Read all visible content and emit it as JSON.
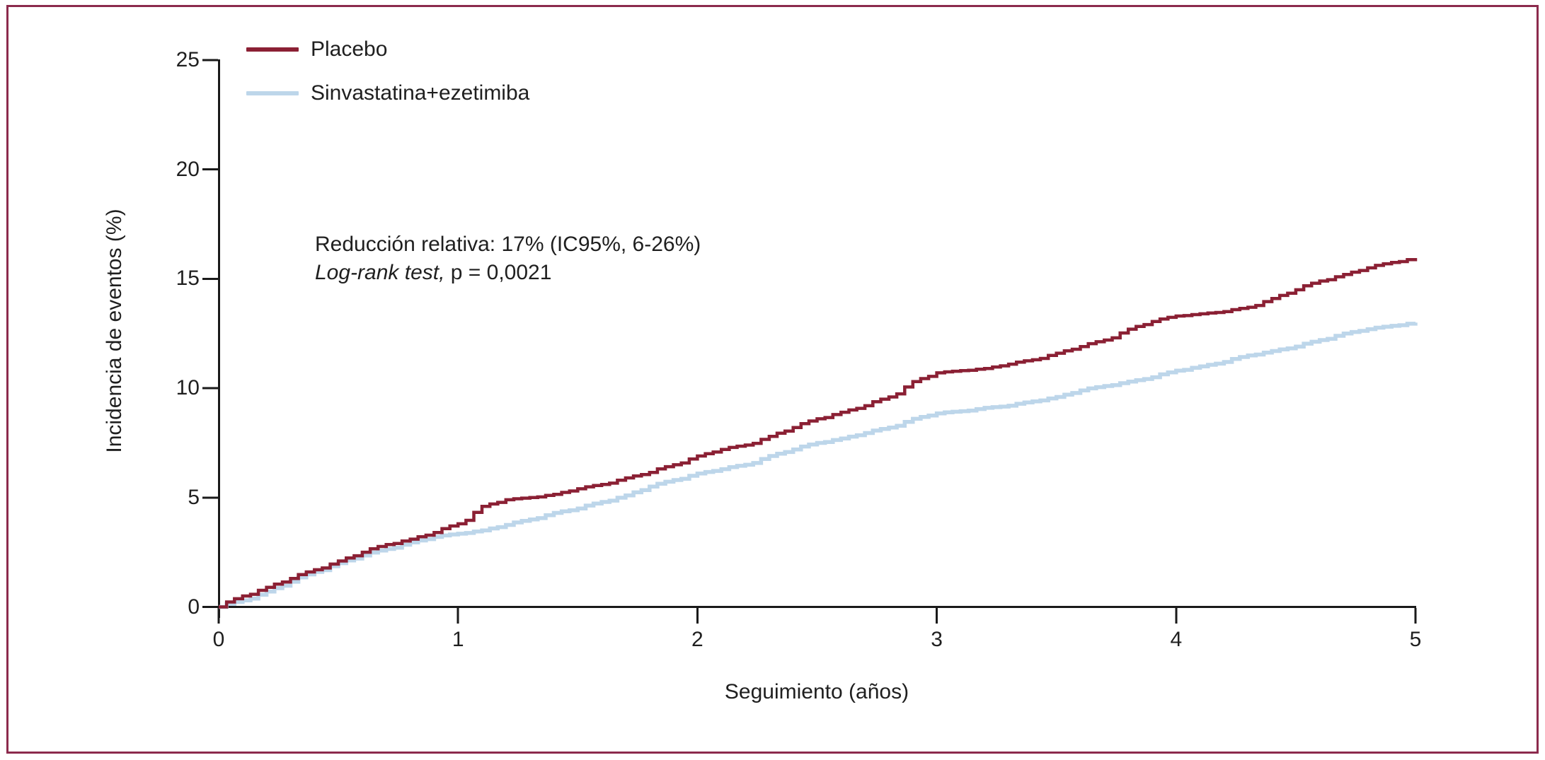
{
  "figure": {
    "background": "#FFFFFF",
    "frame_color": "#8C2B4D",
    "axis_color": "#1A1A1A",
    "text_color": "#1F1F1F"
  },
  "chart_data": {
    "type": "line",
    "subtype": "kaplan-meier-step",
    "title": "",
    "xlabel": "Seguimiento (años)",
    "ylabel": "Incidencia de eventos (%)",
    "xlim": [
      0,
      5
    ],
    "ylim": [
      0,
      25
    ],
    "x_ticks": [
      0,
      1,
      2,
      3,
      4,
      5
    ],
    "y_ticks": [
      0,
      5,
      10,
      15,
      20,
      25
    ],
    "grid": false,
    "legend_position": "upper-left-inside",
    "annotation": {
      "line1": "Reducción relativa: 17% (IC95%, 6-26%)",
      "line2_italic": "Log-rank test,",
      "line2_rest": " p = 0,0021"
    },
    "x": [
      0,
      0.1,
      0.2,
      0.3,
      0.4,
      0.5,
      0.6,
      0.7,
      0.8,
      0.9,
      1.0,
      1.1,
      1.2,
      1.3,
      1.4,
      1.5,
      1.6,
      1.7,
      1.8,
      1.9,
      2.0,
      2.1,
      2.2,
      2.3,
      2.4,
      2.5,
      2.6,
      2.7,
      2.8,
      2.9,
      3.0,
      3.1,
      3.2,
      3.3,
      3.4,
      3.5,
      3.6,
      3.7,
      3.8,
      3.9,
      4.0,
      4.1,
      4.2,
      4.3,
      4.4,
      4.5,
      4.6,
      4.7,
      4.8,
      4.9,
      5.0
    ],
    "series": [
      {
        "name": "Placebo",
        "color": "#8B2034",
        "stroke_width": 4.5,
        "y": [
          0,
          0.5,
          0.9,
          1.3,
          1.7,
          2.1,
          2.5,
          2.85,
          3.1,
          3.4,
          3.8,
          4.6,
          4.9,
          5.0,
          5.15,
          5.4,
          5.6,
          5.9,
          6.15,
          6.5,
          6.9,
          7.2,
          7.4,
          7.8,
          8.2,
          8.6,
          8.9,
          9.2,
          9.6,
          10.3,
          10.7,
          10.8,
          10.9,
          11.1,
          11.3,
          11.6,
          11.9,
          12.2,
          12.7,
          13.05,
          13.3,
          13.4,
          13.5,
          13.7,
          14.1,
          14.5,
          14.9,
          15.2,
          15.5,
          15.75,
          15.95
        ]
      },
      {
        "name": "Sinvastatina+ezetimiba",
        "color": "#BDD6EA",
        "stroke_width": 5.5,
        "y": [
          0,
          0.3,
          0.7,
          1.15,
          1.6,
          2.0,
          2.35,
          2.65,
          2.95,
          3.2,
          3.35,
          3.5,
          3.75,
          4.0,
          4.3,
          4.5,
          4.8,
          5.1,
          5.5,
          5.8,
          6.1,
          6.3,
          6.5,
          6.9,
          7.2,
          7.5,
          7.7,
          7.95,
          8.2,
          8.6,
          8.85,
          8.95,
          9.1,
          9.2,
          9.4,
          9.6,
          9.9,
          10.1,
          10.3,
          10.5,
          10.8,
          11.0,
          11.2,
          11.5,
          11.7,
          11.9,
          12.2,
          12.5,
          12.7,
          12.85,
          13.0
        ]
      }
    ]
  }
}
